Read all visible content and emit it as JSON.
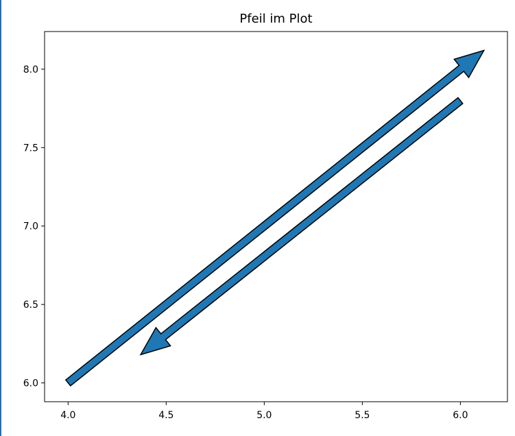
{
  "window": {
    "edge_color": "#2a6fb0"
  },
  "chart_data": {
    "type": "arrow-plot",
    "title": "Pfeil im Plot",
    "xlabel": "",
    "ylabel": "",
    "xlim": [
      3.88,
      6.24
    ],
    "ylim": [
      5.88,
      8.24
    ],
    "xticks": [
      4.0,
      4.5,
      5.0,
      5.5,
      6.0
    ],
    "xtick_labels": [
      "4.0",
      "4.5",
      "5.0",
      "5.5",
      "6.0"
    ],
    "yticks": [
      6.0,
      6.5,
      7.0,
      7.5,
      8.0
    ],
    "ytick_labels": [
      "6.0",
      "6.5",
      "7.0",
      "7.5",
      "8.0"
    ],
    "grid": false,
    "arrows": [
      {
        "x": 4.0,
        "y": 6.0,
        "x_end": 6.12,
        "y_end": 8.12,
        "color": "#1f77b4",
        "edge_color": "#000000"
      },
      {
        "x": 6.0,
        "y": 7.8,
        "x_end": 4.37,
        "y_end": 6.18,
        "color": "#1f77b4",
        "edge_color": "#000000"
      }
    ]
  }
}
